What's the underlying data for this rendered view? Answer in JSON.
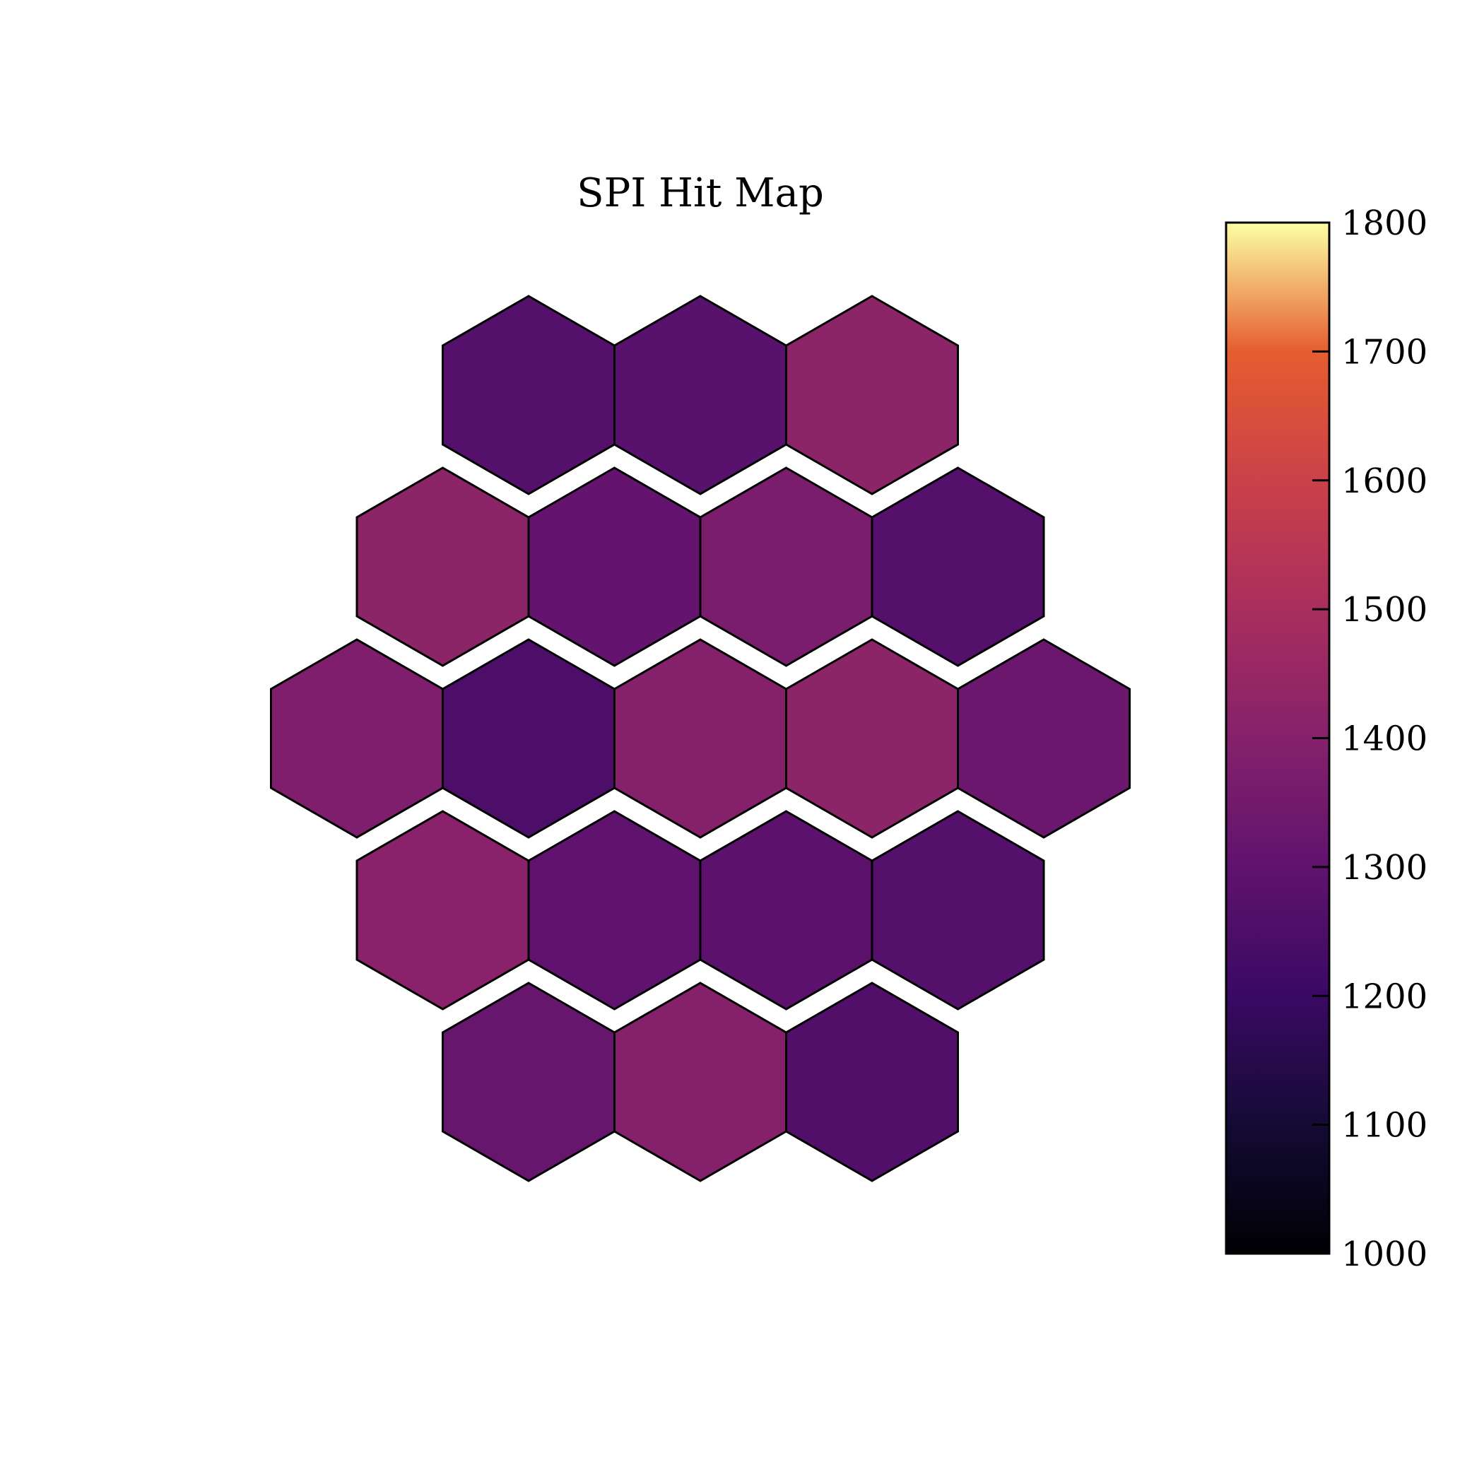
{
  "chart_data": {
    "type": "heatmap",
    "title": "SPI Hit Map",
    "colormap": "inferno",
    "vmin": 1000,
    "vmax": 1800,
    "colorbar_ticks": [
      1000,
      1100,
      1200,
      1300,
      1400,
      1500,
      1600,
      1700,
      1800
    ],
    "colorbar_tick_labels": [
      "1000",
      "1100",
      "1200",
      "1300",
      "1400",
      "1500",
      "1600",
      "1700",
      "1800"
    ],
    "grid": "hexagonal",
    "rows": [
      [
        1270,
        1280,
        1420
      ],
      [
        1420,
        1310,
        1370,
        1270
      ],
      [
        1380,
        1250,
        1400,
        1420,
        1330
      ],
      [
        1410,
        1300,
        1290,
        1270
      ],
      [
        1320,
        1400,
        1260
      ]
    ]
  }
}
